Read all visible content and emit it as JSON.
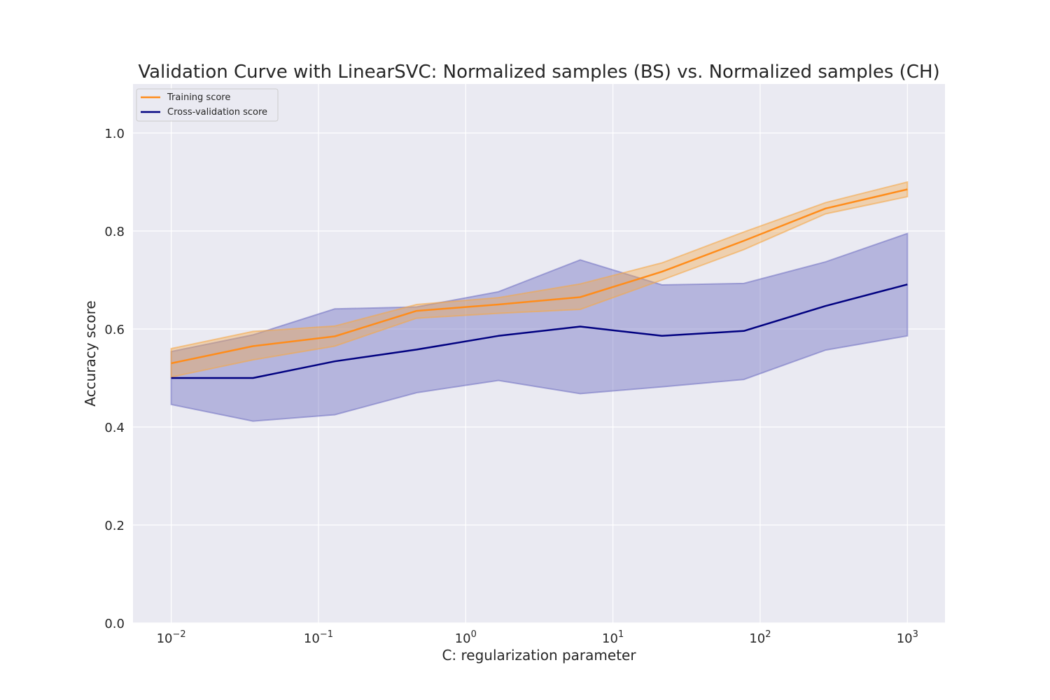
{
  "chart_data": {
    "type": "line",
    "title": "Validation Curve with LinearSVC: Normalized samples (BS) vs. Normalized samples (CH)",
    "xlabel": "C: regularization parameter",
    "ylabel": "Accuracy score",
    "xscale": "log",
    "xlim": [
      0.0055,
      1800
    ],
    "ylim": [
      0.0,
      1.1
    ],
    "x_ticks": [
      {
        "value": 0.01,
        "base": "10",
        "exp": "−2"
      },
      {
        "value": 0.1,
        "base": "10",
        "exp": "−1"
      },
      {
        "value": 1,
        "base": "10",
        "exp": "0"
      },
      {
        "value": 10,
        "base": "10",
        "exp": "1"
      },
      {
        "value": 100,
        "base": "10",
        "exp": "2"
      },
      {
        "value": 1000,
        "base": "10",
        "exp": "3"
      }
    ],
    "y_ticks": [
      "0.0",
      "0.2",
      "0.4",
      "0.6",
      "0.8",
      "1.0"
    ],
    "grid": true,
    "legend_position": "top-left",
    "x": [
      0.01,
      0.0359,
      0.129,
      0.464,
      1.668,
      5.995,
      21.54,
      77.43,
      278.3,
      1000
    ],
    "series": [
      {
        "name": "Training score",
        "color": "#ff8c1a",
        "fill_color": "#f5a94a",
        "values": [
          0.53,
          0.565,
          0.585,
          0.637,
          0.65,
          0.665,
          0.717,
          0.78,
          0.846,
          0.885
        ],
        "lower": [
          0.502,
          0.537,
          0.565,
          0.622,
          0.632,
          0.64,
          0.7,
          0.762,
          0.835,
          0.87
        ],
        "upper": [
          0.56,
          0.595,
          0.606,
          0.65,
          0.664,
          0.692,
          0.735,
          0.798,
          0.858,
          0.9
        ]
      },
      {
        "name": "Cross-validation score",
        "color": "#000080",
        "fill_color": "#7676c4",
        "values": [
          0.5,
          0.5,
          0.534,
          0.558,
          0.586,
          0.605,
          0.586,
          0.596,
          0.647,
          0.691
        ],
        "lower": [
          0.446,
          0.412,
          0.425,
          0.47,
          0.495,
          0.468,
          0.482,
          0.497,
          0.557,
          0.586
        ],
        "upper": [
          0.554,
          0.588,
          0.641,
          0.645,
          0.676,
          0.741,
          0.69,
          0.693,
          0.737,
          0.795
        ]
      }
    ]
  }
}
